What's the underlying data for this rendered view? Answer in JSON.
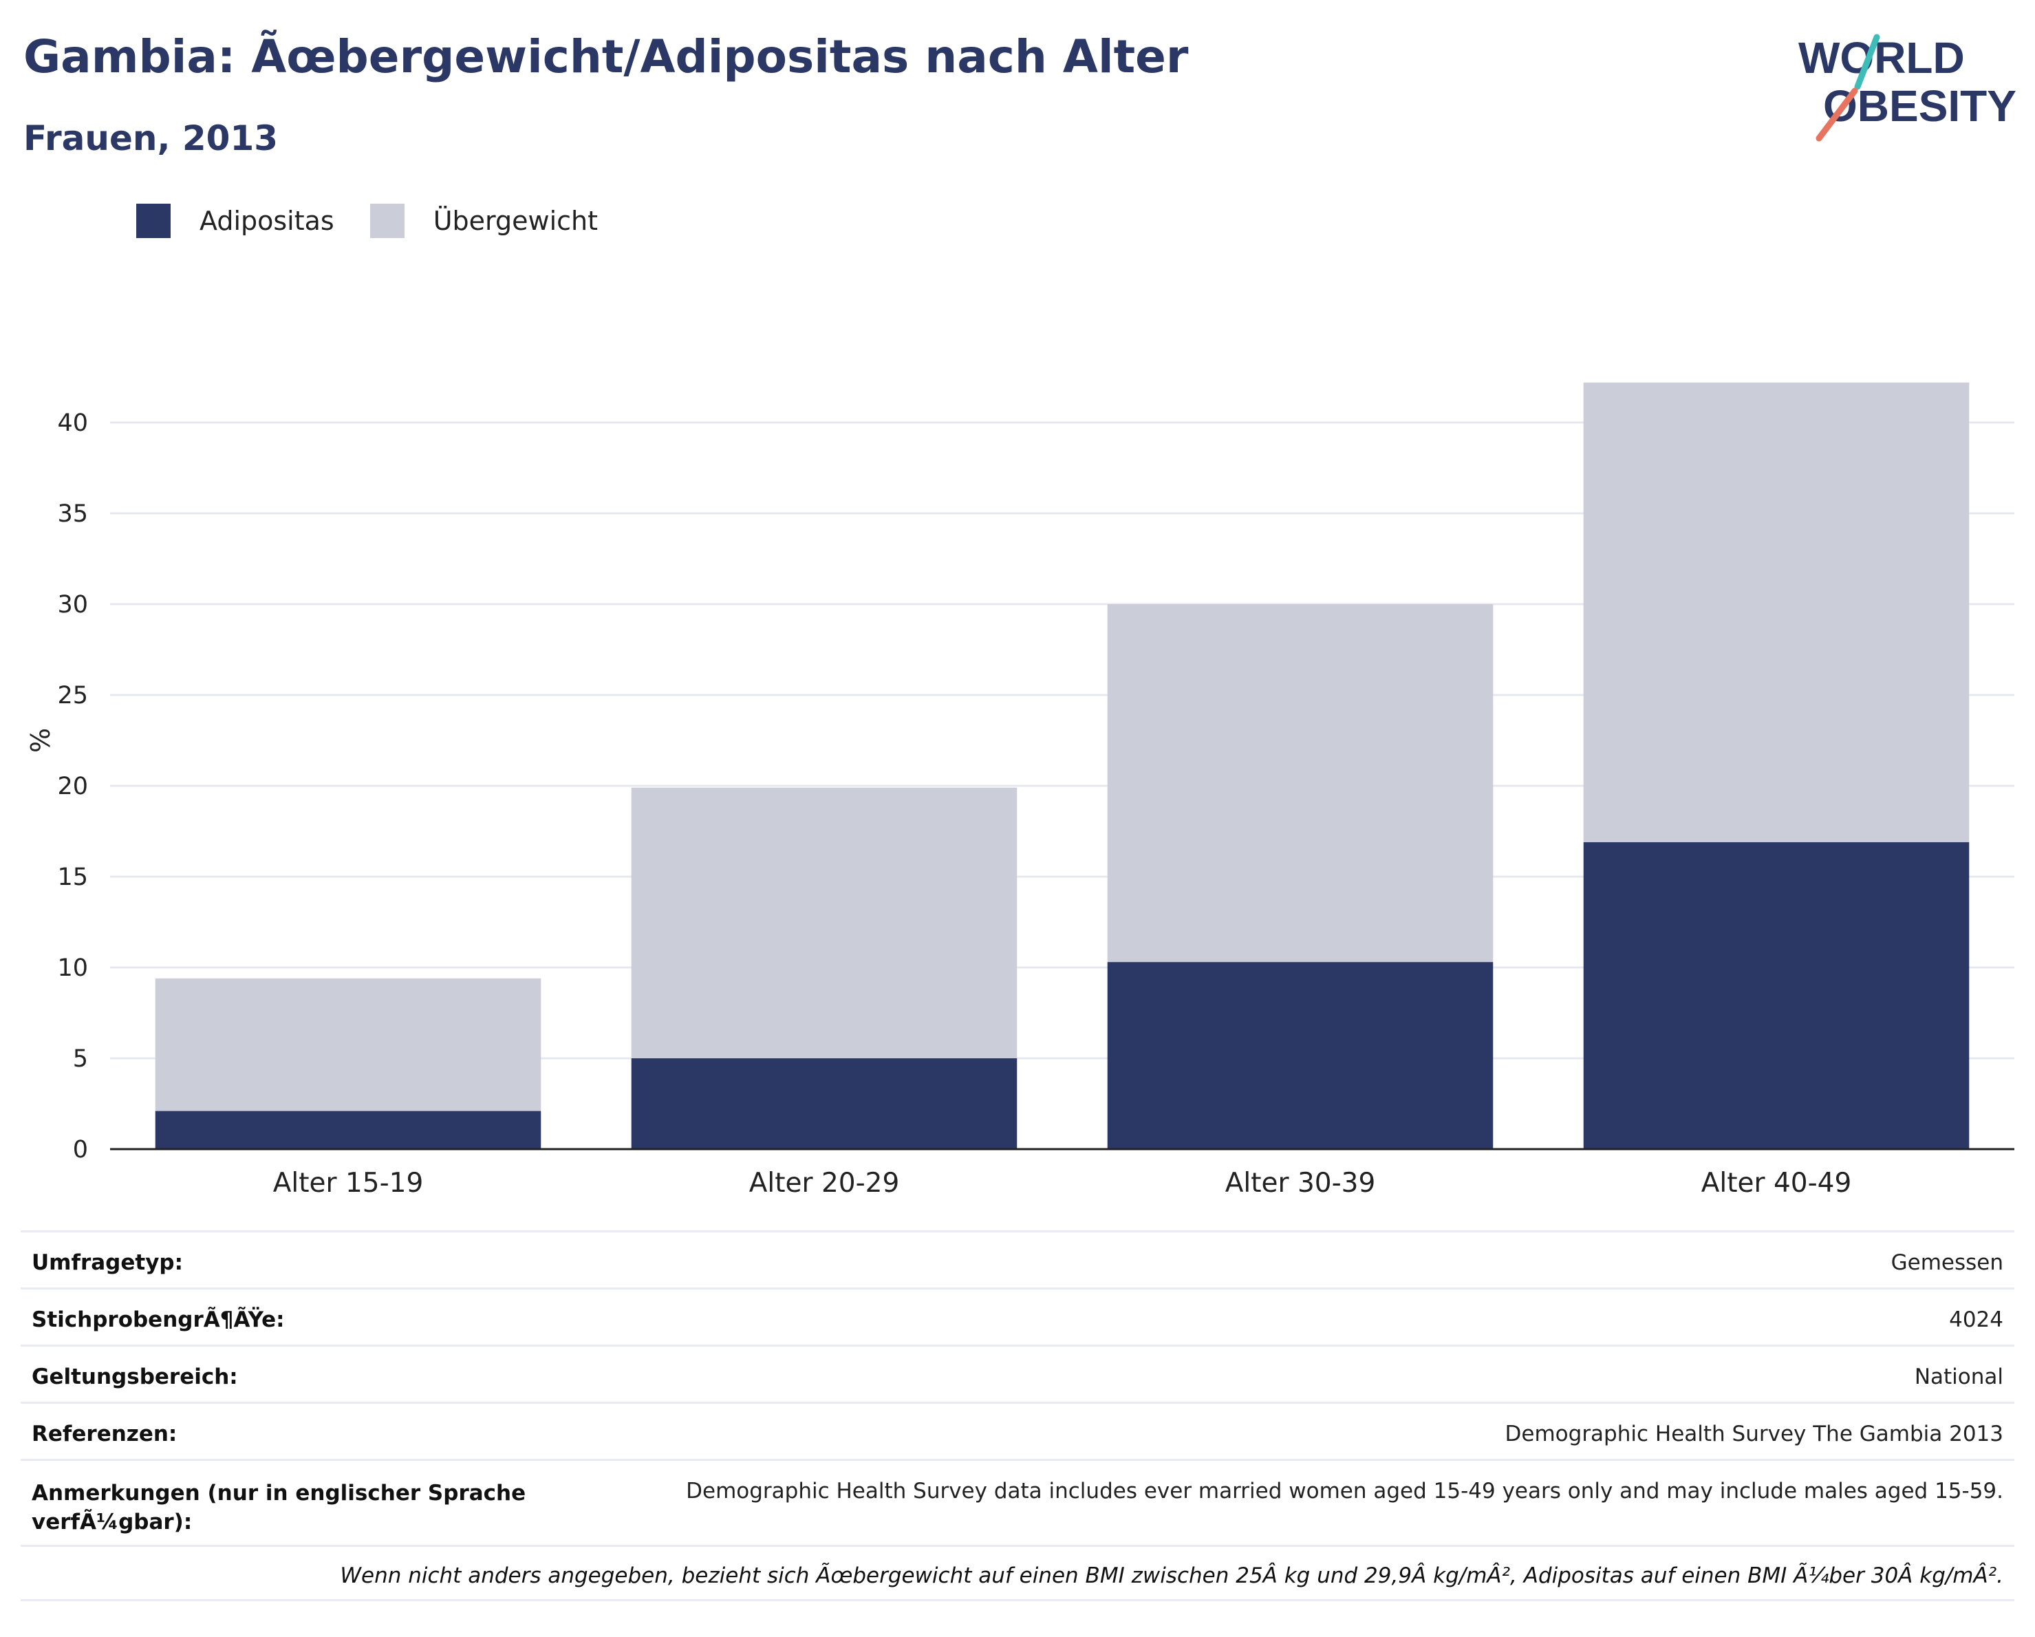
{
  "header": {
    "title": "Gambia: Ãœbergewicht/Adipositas nach Alter",
    "subtitle": "Frauen, 2013"
  },
  "logo": {
    "line1": "WORLD",
    "line2": "OBESITY",
    "accent_teal": "#3dbcb8",
    "accent_coral": "#e8735f",
    "text_color": "#2b3765"
  },
  "colors": {
    "adipositas": "#2b3765",
    "uebergewicht": "#cbcdd8",
    "grid": "#e6e8ef",
    "axis": "#222222"
  },
  "chart_data": {
    "type": "bar",
    "stacked": true,
    "categories": [
      "Alter 15-19",
      "Alter 20-29",
      "Alter 30-39",
      "Alter 40-49"
    ],
    "series": [
      {
        "name": "Adipositas",
        "values": [
          2.1,
          5.0,
          10.3,
          16.9
        ]
      },
      {
        "name": "Übergewicht",
        "values": [
          7.3,
          14.9,
          19.7,
          25.3
        ]
      }
    ],
    "ylabel": "%",
    "ylim": [
      0,
      42
    ],
    "yticks": [
      0,
      5,
      10,
      15,
      20,
      25,
      30,
      35,
      40
    ],
    "grid": true,
    "legend_position": "top-left"
  },
  "info": {
    "rows": [
      {
        "label": "Umfragetyp:",
        "value": "Gemessen"
      },
      {
        "label": "StichprobengrÃ¶ÃŸe:",
        "value": "4024"
      },
      {
        "label": "Geltungsbereich:",
        "value": "National"
      },
      {
        "label": "Referenzen:",
        "value": "Demographic Health Survey The Gambia 2013"
      },
      {
        "label": "Anmerkungen (nur in englischer Sprache verfÃ¼gbar):",
        "value": "Demographic Health Survey data includes ever married women aged 15-49 years only and may include males aged 15-59."
      }
    ],
    "footnote": "Wenn nicht anders angegeben, bezieht sich Ãœbergewicht auf einen BMI zwischen 25Â kg und 29,9Â kg/mÂ², Adipositas auf einen BMI Ã¼ber 30Â kg/mÂ²."
  }
}
